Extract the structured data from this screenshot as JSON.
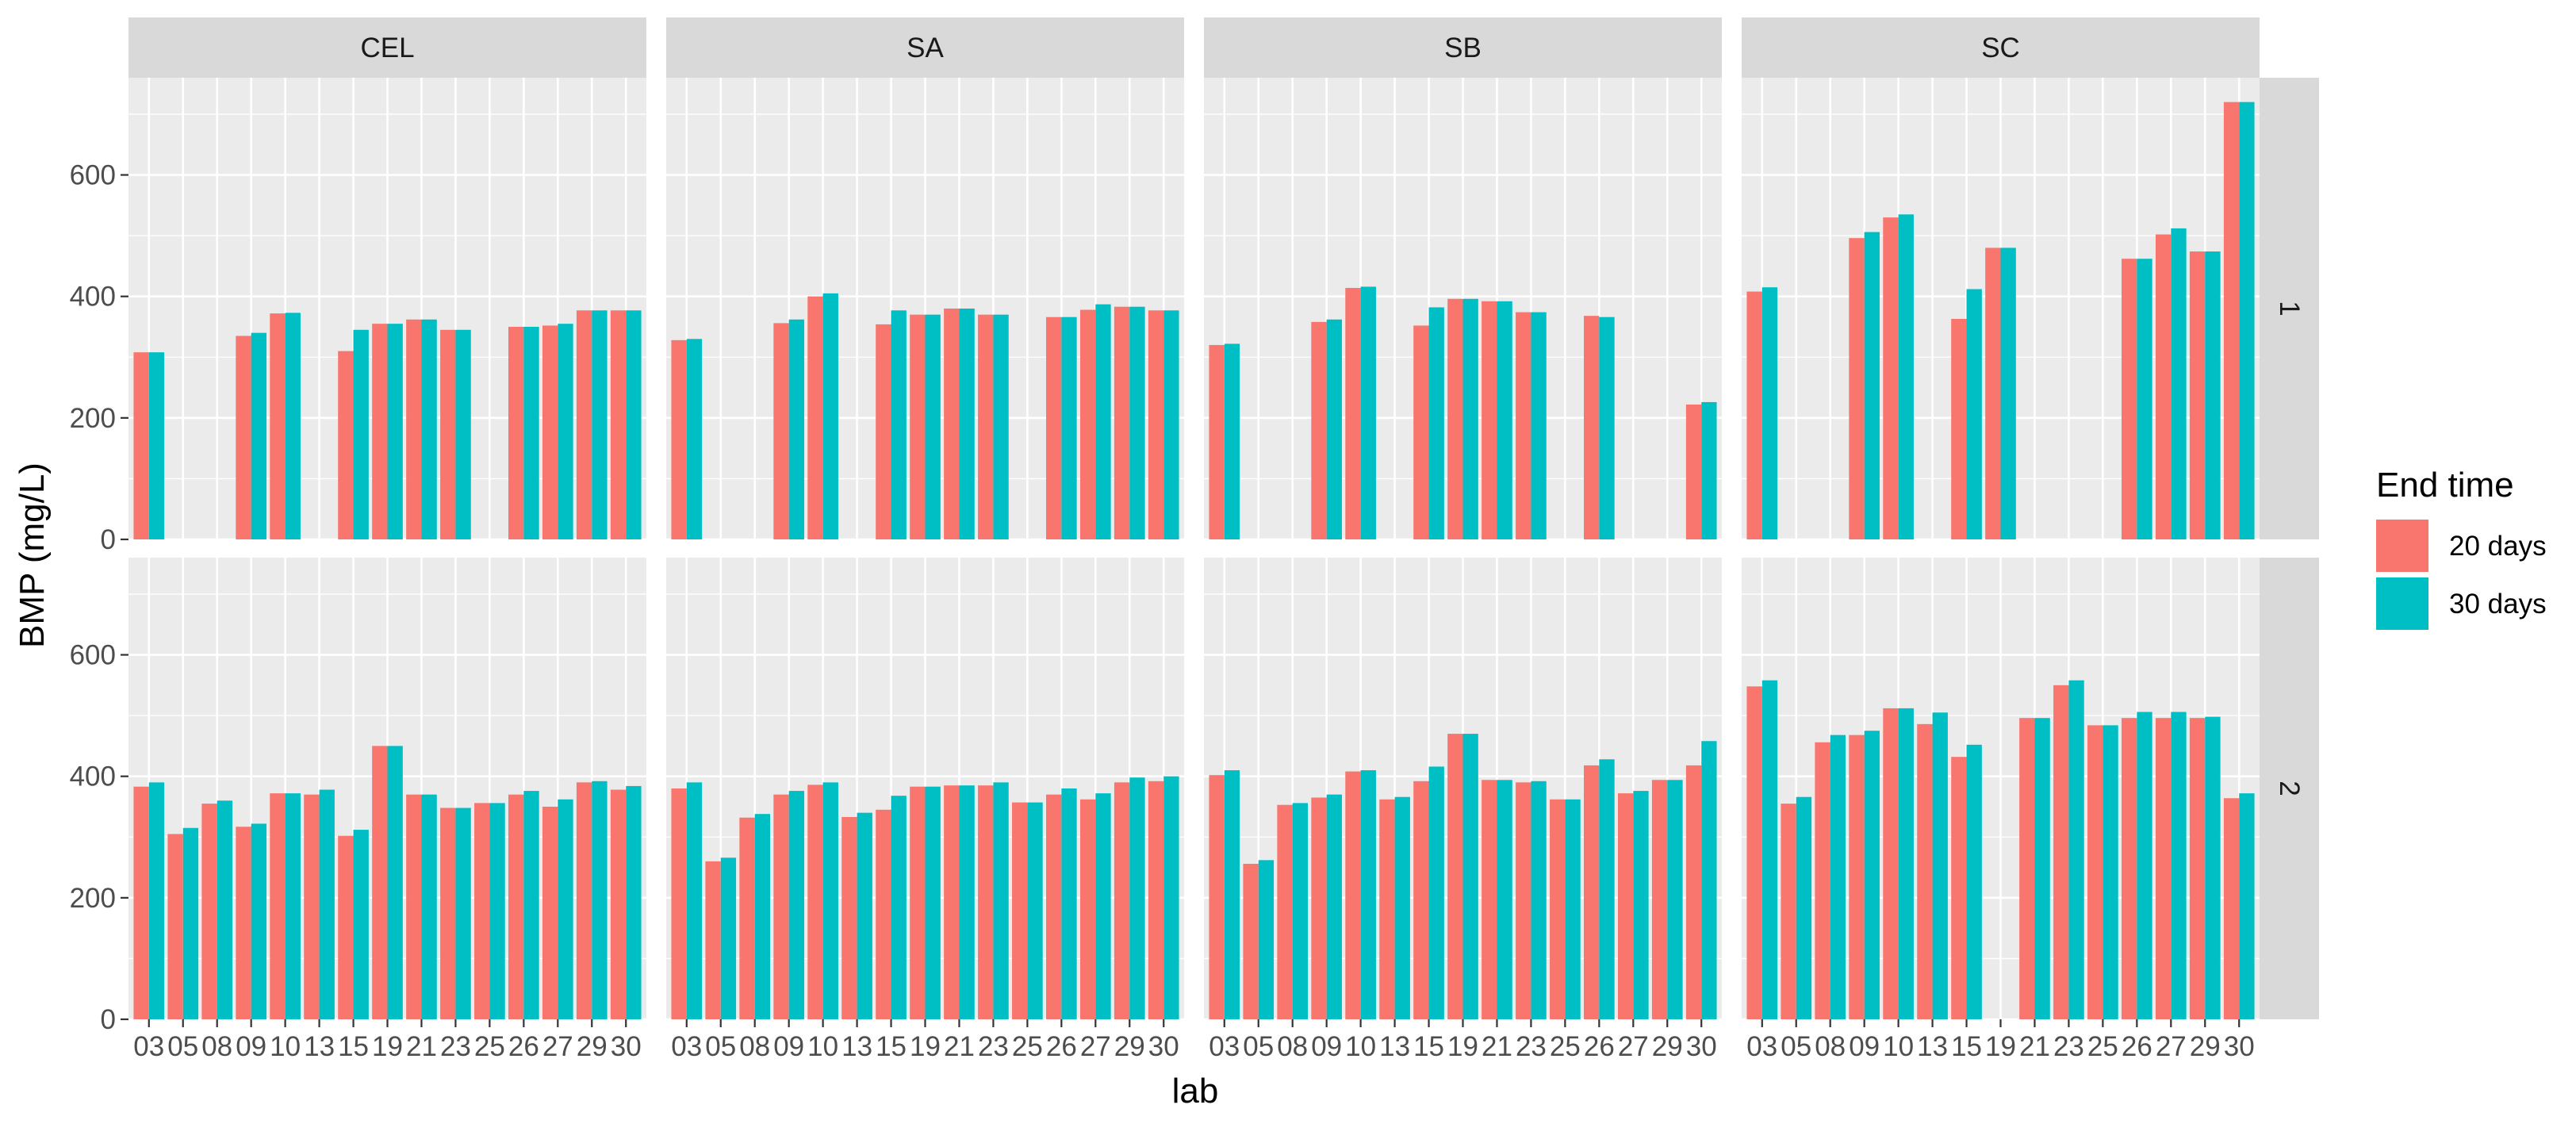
{
  "chart_data": {
    "type": "bar",
    "xlabel": "lab",
    "ylabel": "BMP (mg/L)",
    "ylim": [
      0,
      760
    ],
    "yticks": [
      0,
      200,
      400,
      600
    ],
    "grid": true,
    "legend": {
      "title": "End time",
      "position": "right",
      "entries": [
        {
          "name": "20 days",
          "color": "#F8766D"
        },
        {
          "name": "30 days",
          "color": "#00BFC4"
        }
      ]
    },
    "categories": [
      "03",
      "05",
      "08",
      "09",
      "10",
      "13",
      "15",
      "19",
      "21",
      "23",
      "25",
      "26",
      "27",
      "29",
      "30"
    ],
    "facet_columns": [
      "CEL",
      "SA",
      "SB",
      "SC"
    ],
    "facet_rows": [
      "1",
      "2"
    ],
    "panels": [
      {
        "col": "CEL",
        "row": "1",
        "series": [
          {
            "name": "20 days",
            "values": [
              308,
              null,
              null,
              335,
              372,
              null,
              310,
              355,
              362,
              345,
              null,
              350,
              352,
              377,
              377
            ]
          },
          {
            "name": "30 days",
            "values": [
              308,
              null,
              null,
              340,
              373,
              null,
              345,
              355,
              362,
              345,
              null,
              350,
              355,
              377,
              377
            ]
          }
        ]
      },
      {
        "col": "SA",
        "row": "1",
        "series": [
          {
            "name": "20 days",
            "values": [
              328,
              null,
              null,
              356,
              400,
              null,
              354,
              370,
              380,
              370,
              null,
              366,
              378,
              383,
              377
            ]
          },
          {
            "name": "30 days",
            "values": [
              330,
              null,
              null,
              362,
              405,
              null,
              377,
              370,
              380,
              370,
              null,
              366,
              387,
              383,
              377
            ]
          }
        ]
      },
      {
        "col": "SB",
        "row": "1",
        "series": [
          {
            "name": "20 days",
            "values": [
              320,
              null,
              null,
              358,
              414,
              null,
              352,
              396,
              392,
              374,
              null,
              368,
              null,
              null,
              222
            ]
          },
          {
            "name": "30 days",
            "values": [
              322,
              null,
              null,
              362,
              416,
              null,
              382,
              396,
              392,
              374,
              null,
              366,
              null,
              null,
              226
            ]
          }
        ]
      },
      {
        "col": "SC",
        "row": "1",
        "series": [
          {
            "name": "20 days",
            "values": [
              408,
              null,
              null,
              496,
              530,
              null,
              363,
              480,
              null,
              null,
              null,
              462,
              502,
              474,
              720
            ]
          },
          {
            "name": "30 days",
            "values": [
              415,
              null,
              null,
              506,
              535,
              null,
              412,
              480,
              null,
              null,
              null,
              462,
              512,
              474,
              720
            ]
          }
        ]
      },
      {
        "col": "CEL",
        "row": "2",
        "series": [
          {
            "name": "20 days",
            "values": [
              383,
              305,
              355,
              317,
              372,
              370,
              302,
              450,
              370,
              348,
              356,
              370,
              350,
              390,
              378
            ]
          },
          {
            "name": "30 days",
            "values": [
              390,
              315,
              360,
              322,
              372,
              378,
              312,
              450,
              370,
              348,
              356,
              376,
              362,
              392,
              384
            ]
          }
        ]
      },
      {
        "col": "SA",
        "row": "2",
        "series": [
          {
            "name": "20 days",
            "values": [
              380,
              260,
              332,
              370,
              386,
              333,
              345,
              383,
              385,
              385,
              357,
              370,
              362,
              390,
              392
            ]
          },
          {
            "name": "30 days",
            "values": [
              390,
              266,
              338,
              376,
              390,
              340,
              368,
              383,
              385,
              390,
              357,
              380,
              372,
              398,
              400
            ]
          }
        ]
      },
      {
        "col": "SB",
        "row": "2",
        "series": [
          {
            "name": "20 days",
            "values": [
              402,
              256,
              353,
              365,
              408,
              362,
              392,
              470,
              394,
              390,
              362,
              418,
              372,
              394,
              418
            ]
          },
          {
            "name": "30 days",
            "values": [
              410,
              262,
              356,
              370,
              410,
              366,
              416,
              470,
              394,
              392,
              362,
              428,
              376,
              394,
              458
            ]
          }
        ]
      },
      {
        "col": "SC",
        "row": "2",
        "series": [
          {
            "name": "20 days",
            "values": [
              548,
              355,
              456,
              468,
              512,
              486,
              432,
              null,
              496,
              550,
              484,
              496,
              496,
              496,
              364
            ]
          },
          {
            "name": "30 days",
            "values": [
              558,
              366,
              468,
              475,
              512,
              505,
              452,
              null,
              496,
              558,
              484,
              506,
              506,
              498,
              372
            ]
          }
        ]
      }
    ]
  }
}
